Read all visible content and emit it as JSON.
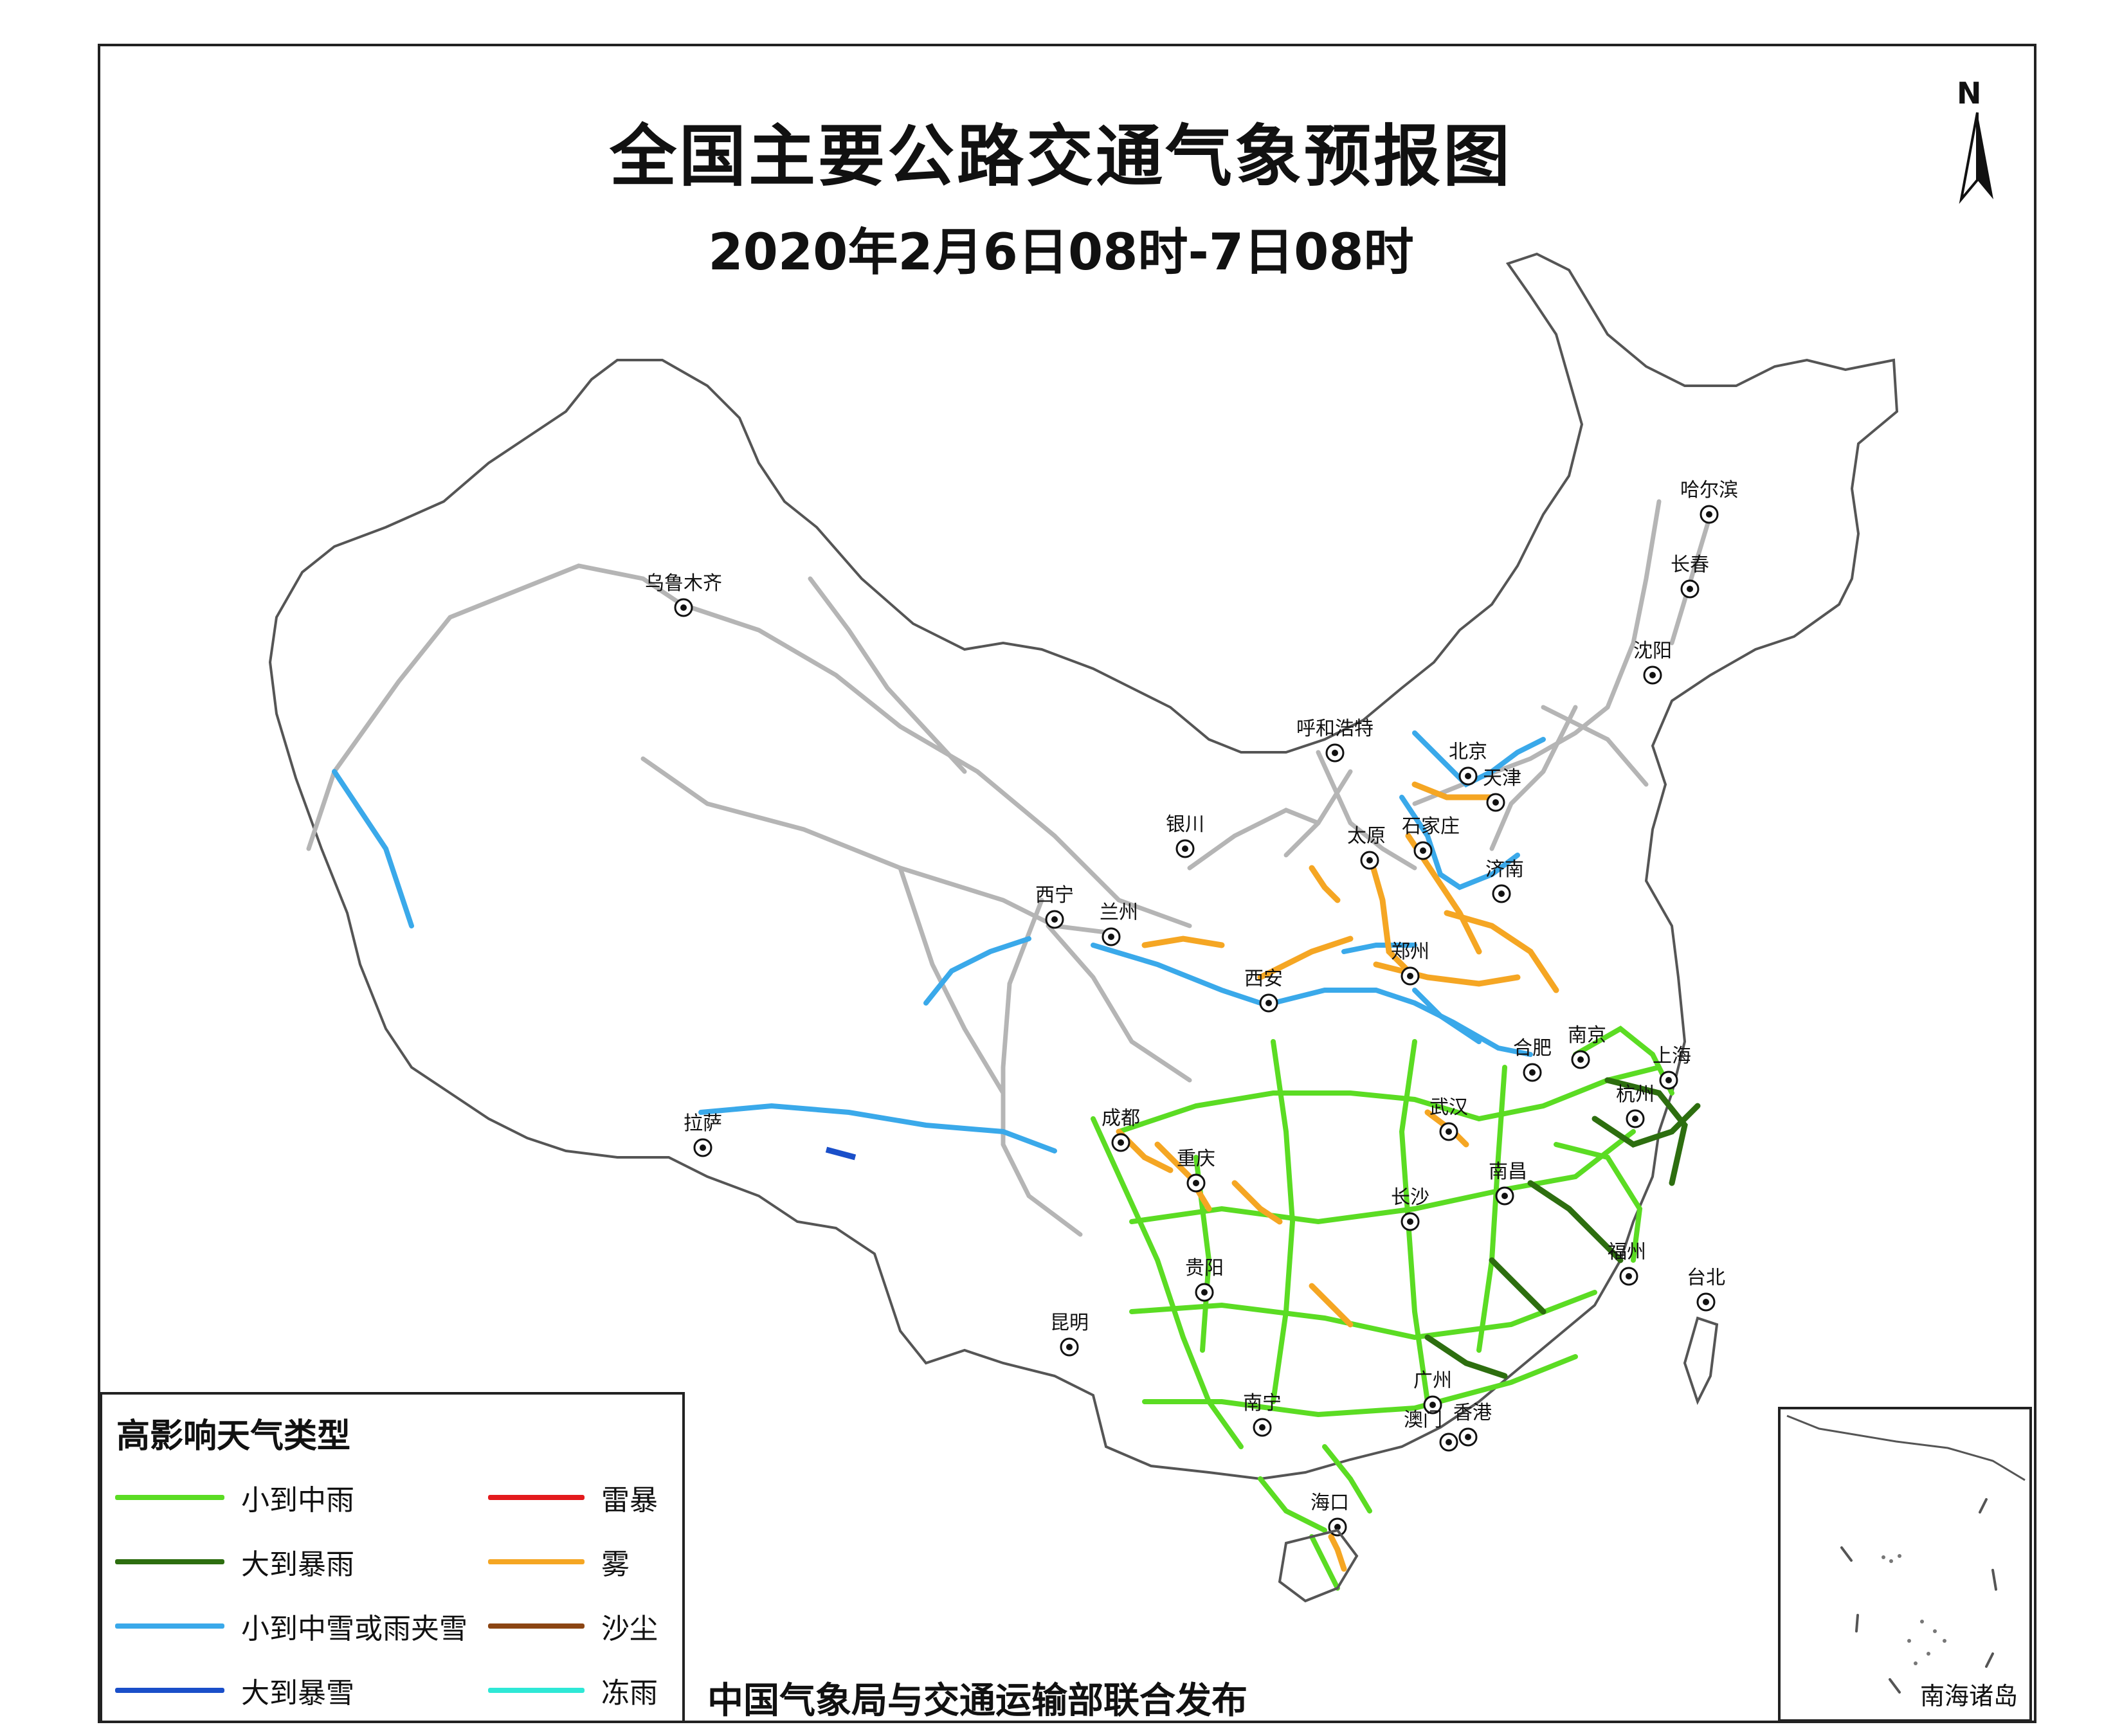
{
  "title": "全国主要公路交通气象预报图",
  "subtitle": "2020年2月6日08时-7日08时",
  "north_label": "N",
  "publisher": "中国气象局与交通运输部联合发布",
  "inset_label": "南海诸岛",
  "legend": {
    "title": "高影响天气类型",
    "items": [
      {
        "label": "小到中雨",
        "color": "#5bdc23"
      },
      {
        "label": "大到暴雨",
        "color": "#2d6e0f"
      },
      {
        "label": "小到中雪或雨夹雪",
        "color": "#3aa9ea"
      },
      {
        "label": "大到暴雪",
        "color": "#1a4fc9"
      },
      {
        "label": "雷暴",
        "color": "#e31a1c"
      },
      {
        "label": "雾",
        "color": "#f5a623"
      },
      {
        "label": "沙尘",
        "color": "#8b4513"
      },
      {
        "label": "冻雨",
        "color": "#2ee8d6"
      }
    ]
  },
  "cities": [
    {
      "name": "哈尔滨"
    },
    {
      "name": "长春"
    },
    {
      "name": "沈阳"
    },
    {
      "name": "乌鲁木齐"
    },
    {
      "name": "呼和浩特"
    },
    {
      "name": "北京"
    },
    {
      "name": "天津"
    },
    {
      "name": "银川"
    },
    {
      "name": "太原"
    },
    {
      "name": "石家庄"
    },
    {
      "name": "济南"
    },
    {
      "name": "西宁"
    },
    {
      "name": "兰州"
    },
    {
      "name": "郑州"
    },
    {
      "name": "西安"
    },
    {
      "name": "合肥"
    },
    {
      "name": "南京"
    },
    {
      "name": "上海"
    },
    {
      "name": "拉萨"
    },
    {
      "name": "成都"
    },
    {
      "name": "武汉"
    },
    {
      "name": "杭州"
    },
    {
      "name": "重庆"
    },
    {
      "name": "南昌"
    },
    {
      "name": "长沙"
    },
    {
      "name": "福州"
    },
    {
      "name": "贵阳"
    },
    {
      "name": "台北"
    },
    {
      "name": "昆明"
    },
    {
      "name": "广州"
    },
    {
      "name": "南宁"
    },
    {
      "name": "澳门"
    },
    {
      "name": "香港"
    },
    {
      "name": "海口"
    }
  ]
}
